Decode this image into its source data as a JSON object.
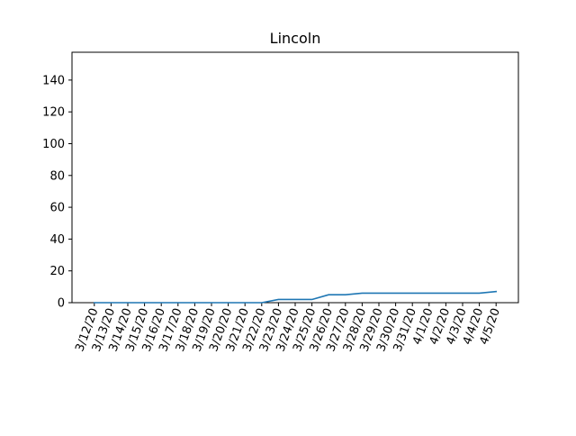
{
  "chart_data": {
    "type": "line",
    "title": "Lincoln",
    "xlabel": "",
    "ylabel": "",
    "categories": [
      "3/12/20",
      "3/13/20",
      "3/14/20",
      "3/15/20",
      "3/16/20",
      "3/17/20",
      "3/18/20",
      "3/19/20",
      "3/20/20",
      "3/21/20",
      "3/22/20",
      "3/23/20",
      "3/24/20",
      "3/25/20",
      "3/26/20",
      "3/27/20",
      "3/28/20",
      "3/29/20",
      "3/30/20",
      "3/31/20",
      "4/1/20",
      "4/2/20",
      "4/3/20",
      "4/4/20",
      "4/5/20"
    ],
    "series": [
      {
        "values": [
          0,
          0,
          0,
          0,
          0,
          0,
          0,
          0,
          0,
          0,
          0,
          2,
          2,
          2,
          5,
          5,
          6,
          6,
          6,
          6,
          6,
          6,
          6,
          6,
          7
        ],
        "color": "#1f77b4"
      }
    ],
    "ylim": [
      0,
      157.5
    ],
    "yticks": [
      0,
      20,
      40,
      60,
      80,
      100,
      120,
      140
    ],
    "grid": false,
    "legend": "none"
  }
}
